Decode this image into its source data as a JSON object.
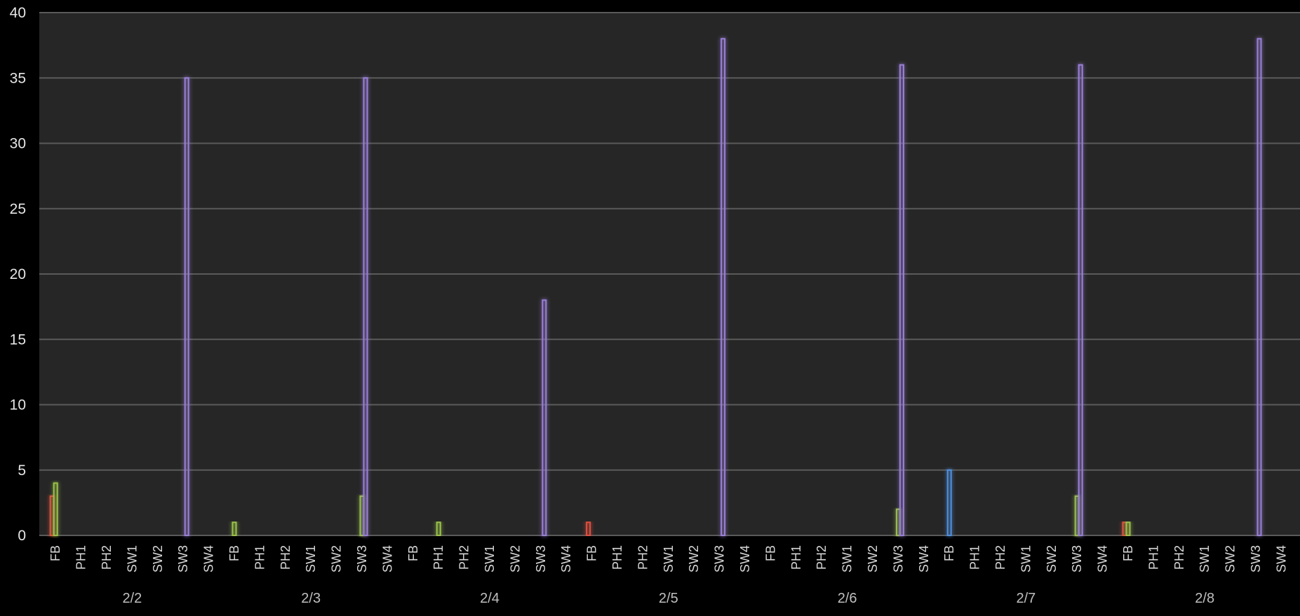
{
  "chart_data": {
    "type": "bar",
    "groups": [
      "2/2",
      "2/3",
      "2/4",
      "2/5",
      "2/6",
      "2/7",
      "2/8"
    ],
    "categories": [
      "FB",
      "PH1",
      "PH2",
      "SW1",
      "SW2",
      "SW3",
      "SW4"
    ],
    "ylim": [
      0,
      40
    ],
    "yticks": [
      0,
      5,
      10,
      15,
      20,
      25,
      30,
      35,
      40
    ],
    "grid": true,
    "legend": "none",
    "bars": [
      {
        "group": "2/2",
        "category": "FB",
        "color": "#e05040",
        "value": 3
      },
      {
        "group": "2/2",
        "category": "FB",
        "color": "#9ac24a",
        "value": 4
      },
      {
        "group": "2/2",
        "category": "SW3",
        "color": "#9a7fd8",
        "value": 35
      },
      {
        "group": "2/3",
        "category": "FB",
        "color": "#9ac24a",
        "value": 1
      },
      {
        "group": "2/3",
        "category": "SW3",
        "color": "#9ac24a",
        "value": 3
      },
      {
        "group": "2/3",
        "category": "SW3",
        "color": "#9a7fd8",
        "value": 35
      },
      {
        "group": "2/4",
        "category": "PH1",
        "color": "#9ac24a",
        "value": 1
      },
      {
        "group": "2/4",
        "category": "SW3",
        "color": "#9a7fd8",
        "value": 18
      },
      {
        "group": "2/5",
        "category": "FB",
        "color": "#e05040",
        "value": 1
      },
      {
        "group": "2/5",
        "category": "SW3",
        "color": "#9a7fd8",
        "value": 38
      },
      {
        "group": "2/6",
        "category": "SW3",
        "color": "#9ac24a",
        "value": 2
      },
      {
        "group": "2/6",
        "category": "SW3",
        "color": "#9a7fd8",
        "value": 36
      },
      {
        "group": "2/7",
        "category": "FB",
        "color": "#4f90e0",
        "value": 5
      },
      {
        "group": "2/7",
        "category": "SW3",
        "color": "#9ac24a",
        "value": 3
      },
      {
        "group": "2/7",
        "category": "SW3",
        "color": "#9a7fd8",
        "value": 36
      },
      {
        "group": "2/8",
        "category": "FB",
        "color": "#e05040",
        "value": 1
      },
      {
        "group": "2/8",
        "category": "FB",
        "color": "#9ac24a",
        "value": 1
      },
      {
        "group": "2/8",
        "category": "SW3",
        "color": "#9a7fd8",
        "value": 38
      }
    ],
    "colors": {
      "background": "#262626",
      "page": "#000000",
      "grid": "#5a5a5a"
    }
  }
}
